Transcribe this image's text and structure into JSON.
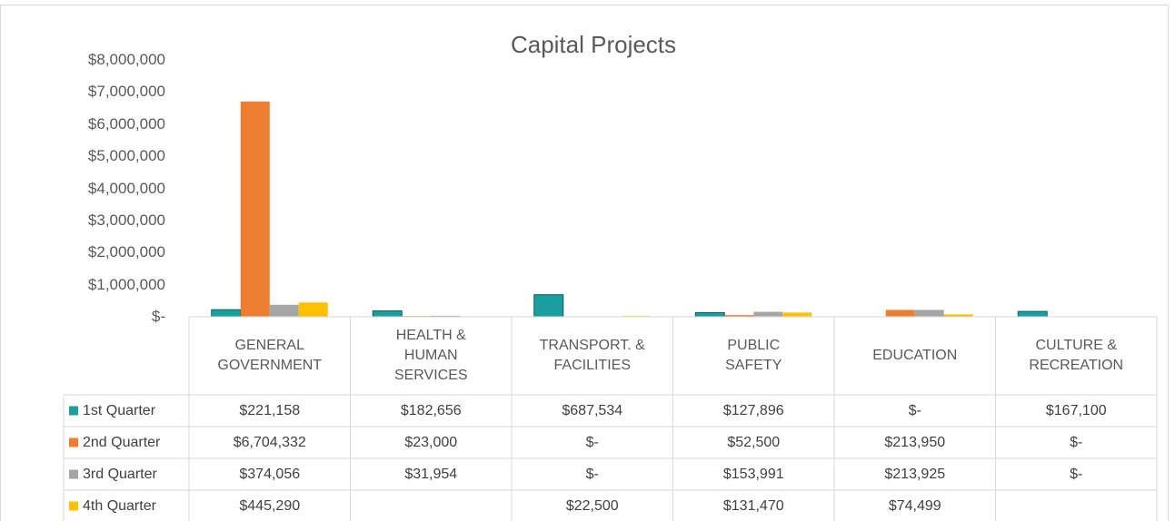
{
  "chart_data": {
    "type": "bar",
    "title": "Capital Projects",
    "categories": [
      "GENERAL GOVERNMENT",
      "HEALTH & HUMAN SERVICES",
      "TRANSPORT. & FACILITIES",
      "PUBLIC SAFETY",
      "EDUCATION",
      "CULTURE & RECREATION"
    ],
    "series": [
      {
        "name": "1st Quarter",
        "color": "#1a9e9e",
        "values": [
          221158,
          182656,
          687534,
          127896,
          0,
          167100
        ],
        "value_labels": [
          "$221,158",
          "$182,656",
          "$687,534",
          "$127,896",
          "$-",
          "$167,100"
        ]
      },
      {
        "name": "2nd Quarter",
        "color": "#ed7d31",
        "values": [
          6704332,
          23000,
          0,
          52500,
          213950,
          0
        ],
        "value_labels": [
          "$6,704,332",
          "$23,000",
          "$-",
          "$52,500",
          "$213,950",
          "$-"
        ]
      },
      {
        "name": "3rd Quarter",
        "color": "#a5a5a5",
        "values": [
          374056,
          31954,
          0,
          153991,
          213925,
          0
        ],
        "value_labels": [
          "$374,056",
          "$31,954",
          "$-",
          "$153,991",
          "$213,925",
          "$-"
        ]
      },
      {
        "name": "4th Quarter",
        "color": "#ffc000",
        "values": [
          445290,
          null,
          22500,
          131470,
          74499,
          null
        ],
        "value_labels": [
          "$445,290",
          null,
          "$22,500",
          "$131,470",
          "$74,499",
          null
        ]
      }
    ],
    "ylim": [
      0,
      8000000
    ],
    "yticks": [
      {
        "value": 0,
        "label": "$-"
      },
      {
        "value": 1000000,
        "label": "$1,000,000"
      },
      {
        "value": 2000000,
        "label": "$2,000,000"
      },
      {
        "value": 3000000,
        "label": "$3,000,000"
      },
      {
        "value": 4000000,
        "label": "$4,000,000"
      },
      {
        "value": 5000000,
        "label": "$5,000,000"
      },
      {
        "value": 6000000,
        "label": "$6,000,000"
      },
      {
        "value": 7000000,
        "label": "$7,000,000"
      },
      {
        "value": 8000000,
        "label": "$8,000,000"
      }
    ],
    "grid": false
  }
}
